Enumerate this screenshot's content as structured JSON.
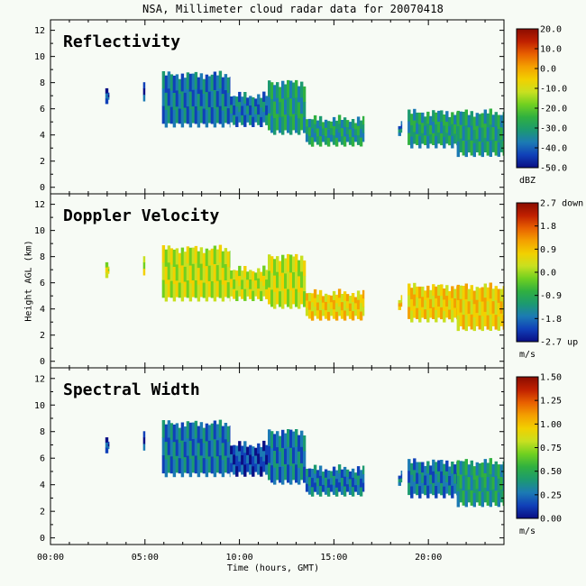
{
  "figure": {
    "title": "NSA, Millimeter cloud radar data for 20070418",
    "xlabel": "Time (hours, GMT)",
    "ylabel": "Height AGL (km)"
  },
  "colors": {
    "background": "#f7fbf5",
    "colormap": [
      "#0a0e84",
      "#1040b8",
      "#1c7ab4",
      "#1c9a70",
      "#30b040",
      "#70d020",
      "#c8e020",
      "#f2d000",
      "#f4a000",
      "#e86000",
      "#c02000",
      "#8a0c00"
    ]
  },
  "chart_data": [
    {
      "type": "heatmap",
      "title": "Reflectivity",
      "xlabel": "Time (hours, GMT)",
      "ylabel": "Height AGL (km)",
      "x_ticks": [
        "00:00",
        "05:00",
        "10:00",
        "15:00",
        "20:00"
      ],
      "x_tick_values": [
        0,
        5,
        10,
        15,
        20
      ],
      "xlim": [
        0,
        24
      ],
      "y_ticks": [
        0,
        2,
        4,
        6,
        8,
        10,
        12
      ],
      "ylim": [
        -0.5,
        12.8
      ],
      "colorbar": {
        "ticks": [
          "20.0",
          "10.0",
          "0.0",
          "-10.0",
          "-20.0",
          "-30.0",
          "-40.0",
          "-50.0"
        ],
        "unit": "dBZ",
        "range": [
          -50,
          20
        ]
      },
      "cloud_regions": [
        {
          "t_start": 2.9,
          "t_end": 3.1,
          "base_km": 6.6,
          "top_km": 7.5,
          "value": -42
        },
        {
          "t_start": 4.9,
          "t_end": 5.0,
          "base_km": 6.8,
          "top_km": 7.7,
          "value": -42
        },
        {
          "t_start": 5.9,
          "t_end": 9.5,
          "base_km": 4.8,
          "top_km": 8.6,
          "value": -35
        },
        {
          "t_start": 9.5,
          "t_end": 11.5,
          "base_km": 4.8,
          "top_km": 7.0,
          "value": -38
        },
        {
          "t_start": 11.5,
          "t_end": 13.5,
          "base_km": 4.2,
          "top_km": 8.0,
          "value": -30
        },
        {
          "t_start": 13.5,
          "t_end": 16.6,
          "base_km": 3.3,
          "top_km": 5.2,
          "value": -28
        },
        {
          "t_start": 18.4,
          "t_end": 18.6,
          "base_km": 4.0,
          "top_km": 5.0,
          "value": -35
        },
        {
          "t_start": 18.9,
          "t_end": 21.5,
          "base_km": 3.2,
          "top_km": 5.7,
          "value": -30
        },
        {
          "t_start": 21.5,
          "t_end": 24.0,
          "base_km": 2.5,
          "top_km": 5.7,
          "value": -28
        }
      ]
    },
    {
      "type": "heatmap",
      "title": "Doppler Velocity",
      "xlabel": "Time (hours, GMT)",
      "ylabel": "Height AGL (km)",
      "x_ticks": [
        "00:00",
        "05:00",
        "10:00",
        "15:00",
        "20:00"
      ],
      "x_tick_values": [
        0,
        5,
        10,
        15,
        20
      ],
      "xlim": [
        0,
        24
      ],
      "y_ticks": [
        0,
        2,
        4,
        6,
        8,
        10,
        12
      ],
      "ylim": [
        -0.5,
        12.8
      ],
      "colorbar": {
        "ticks": [
          "2.7 down",
          "1.8",
          "0.9",
          "0.0",
          "-0.9",
          "-1.8",
          "-2.7 up"
        ],
        "unit": "m/s",
        "range": [
          -2.7,
          2.7
        ]
      },
      "cloud_regions": [
        {
          "t_start": 2.9,
          "t_end": 3.1,
          "base_km": 6.6,
          "top_km": 7.5,
          "value": 0.3
        },
        {
          "t_start": 4.9,
          "t_end": 5.0,
          "base_km": 6.8,
          "top_km": 7.7,
          "value": 0.3
        },
        {
          "t_start": 5.9,
          "t_end": 9.5,
          "base_km": 4.8,
          "top_km": 8.6,
          "value": 0.4
        },
        {
          "t_start": 9.5,
          "t_end": 11.5,
          "base_km": 4.8,
          "top_km": 7.0,
          "value": 0.4
        },
        {
          "t_start": 11.5,
          "t_end": 13.5,
          "base_km": 4.2,
          "top_km": 8.0,
          "value": 0.3
        },
        {
          "t_start": 13.5,
          "t_end": 16.6,
          "base_km": 3.3,
          "top_km": 5.2,
          "value": 0.6
        },
        {
          "t_start": 18.4,
          "t_end": 18.6,
          "base_km": 4.0,
          "top_km": 5.0,
          "value": 0.5
        },
        {
          "t_start": 18.9,
          "t_end": 21.5,
          "base_km": 3.2,
          "top_km": 5.7,
          "value": 0.5
        },
        {
          "t_start": 21.5,
          "t_end": 24.0,
          "base_km": 2.5,
          "top_km": 5.7,
          "value": 0.6
        }
      ]
    },
    {
      "type": "heatmap",
      "title": "Spectral Width",
      "xlabel": "Time (hours, GMT)",
      "ylabel": "Height AGL (km)",
      "x_ticks": [
        "00:00",
        "05:00",
        "10:00",
        "15:00",
        "20:00"
      ],
      "x_tick_values": [
        0,
        5,
        10,
        15,
        20
      ],
      "xlim": [
        0,
        24
      ],
      "y_ticks": [
        0,
        2,
        4,
        6,
        8,
        10,
        12
      ],
      "ylim": [
        -0.5,
        12.8
      ],
      "colorbar": {
        "ticks": [
          "1.50",
          "1.25",
          "1.00",
          "0.75",
          "0.50",
          "0.25",
          "0.00"
        ],
        "unit": "m/s",
        "range": [
          0,
          1.5
        ]
      },
      "cloud_regions": [
        {
          "t_start": 2.9,
          "t_end": 3.1,
          "base_km": 6.6,
          "top_km": 7.5,
          "value": 0.2
        },
        {
          "t_start": 4.9,
          "t_end": 5.0,
          "base_km": 6.8,
          "top_km": 7.7,
          "value": 0.2
        },
        {
          "t_start": 5.9,
          "t_end": 9.5,
          "base_km": 4.8,
          "top_km": 8.6,
          "value": 0.25
        },
        {
          "t_start": 9.5,
          "t_end": 11.5,
          "base_km": 4.8,
          "top_km": 7.0,
          "value": 0.2
        },
        {
          "t_start": 11.5,
          "t_end": 13.5,
          "base_km": 4.2,
          "top_km": 8.0,
          "value": 0.22
        },
        {
          "t_start": 13.5,
          "t_end": 16.6,
          "base_km": 3.3,
          "top_km": 5.2,
          "value": 0.3
        },
        {
          "t_start": 18.4,
          "t_end": 18.6,
          "base_km": 4.0,
          "top_km": 5.0,
          "value": 0.25
        },
        {
          "t_start": 18.9,
          "t_end": 21.5,
          "base_km": 3.2,
          "top_km": 5.7,
          "value": 0.3
        },
        {
          "t_start": 21.5,
          "t_end": 24.0,
          "base_km": 2.5,
          "top_km": 5.7,
          "value": 0.35
        }
      ]
    }
  ]
}
